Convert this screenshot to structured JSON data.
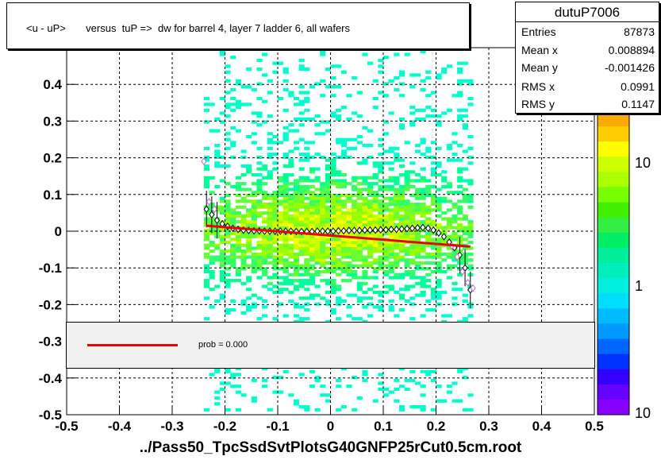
{
  "title": "<u - uP>       versus  tuP =>  dw for barrel 4, layer 7 ladder 6, all wafers",
  "x_title": "../Pass50_TpcSsdSvtPlotsG40GNFP25rCut0.5cm.root",
  "stats": {
    "name": "dutuP7006",
    "rows": [
      {
        "label": "Entries",
        "value": "87873"
      },
      {
        "label": "Mean x",
        "value": "0.008894"
      },
      {
        "label": "Mean y",
        "value": "-0.001426"
      },
      {
        "label": "RMS x",
        "value": "0.0991"
      },
      {
        "label": "RMS y",
        "value": "0.1147"
      }
    ]
  },
  "fit_label": "prob = 0.000",
  "colors": {
    "fit": "#ee0000",
    "profile": "#000000",
    "profile_alt": "#cc66cc"
  },
  "chart_data": {
    "type": "heatmap",
    "title": "<u - uP>       versus  tuP =>  dw for barrel 4, layer 7 ladder 6, all wafers",
    "xlabel": "../Pass50_TpcSsdSvtPlotsG40GNFP25rCut0.5cm.root",
    "ylabel": "",
    "xlim": [
      -0.5,
      0.5
    ],
    "ylim": [
      -0.5,
      0.5
    ],
    "x_ticks": [
      "-0.5",
      "-0.4",
      "-0.3",
      "-0.2",
      "-0.1",
      "0",
      "0.1",
      "0.2",
      "0.3",
      "0.4",
      "0.5"
    ],
    "y_ticks": [
      "-0.5",
      "-0.4",
      "-0.3",
      "-0.2",
      "-0.1",
      "0",
      "0.1",
      "0.2",
      "0.3",
      "0.4"
    ],
    "grid": true,
    "colorbar": {
      "scale": "log",
      "labels": [
        "1",
        "10",
        "10"
      ]
    },
    "profile": {
      "x": [
        -0.235,
        -0.225,
        -0.215,
        -0.205,
        -0.195,
        -0.185,
        -0.175,
        -0.165,
        -0.155,
        -0.145,
        -0.135,
        -0.125,
        -0.115,
        -0.105,
        -0.095,
        -0.085,
        -0.075,
        -0.065,
        -0.055,
        -0.045,
        -0.035,
        -0.025,
        -0.015,
        -0.005,
        0.005,
        0.015,
        0.025,
        0.035,
        0.045,
        0.055,
        0.065,
        0.075,
        0.085,
        0.095,
        0.105,
        0.115,
        0.125,
        0.135,
        0.145,
        0.155,
        0.165,
        0.175,
        0.185,
        0.195,
        0.205,
        0.215,
        0.225,
        0.235,
        0.245,
        0.255,
        0.265
      ],
      "y": [
        0.06,
        0.045,
        0.03,
        0.02,
        0.013,
        0.008,
        0.005,
        0.003,
        0.002,
        0.001,
        0.001,
        0.0,
        0.0,
        0.0,
        0.0,
        0.0,
        0.0,
        -0.001,
        -0.001,
        -0.001,
        -0.001,
        0.0,
        0.0,
        0.0,
        0.0,
        0.001,
        0.001,
        0.002,
        0.002,
        0.002,
        0.003,
        0.003,
        0.003,
        0.004,
        0.004,
        0.005,
        0.005,
        0.006,
        0.007,
        0.008,
        0.009,
        0.01,
        0.008,
        0.003,
        -0.005,
        -0.015,
        -0.03,
        -0.045,
        -0.065,
        -0.1,
        -0.16
      ],
      "alt_x": [
        -0.24,
        -0.23,
        -0.22,
        0.23,
        0.24,
        0.25,
        0.26,
        0.27
      ],
      "alt_y": [
        0.19,
        0.08,
        0.06,
        -0.04,
        -0.07,
        -0.11,
        -0.14,
        -0.155
      ]
    },
    "fit": {
      "x": [
        -0.235,
        0.265
      ],
      "y": [
        0.015,
        -0.042
      ]
    }
  }
}
